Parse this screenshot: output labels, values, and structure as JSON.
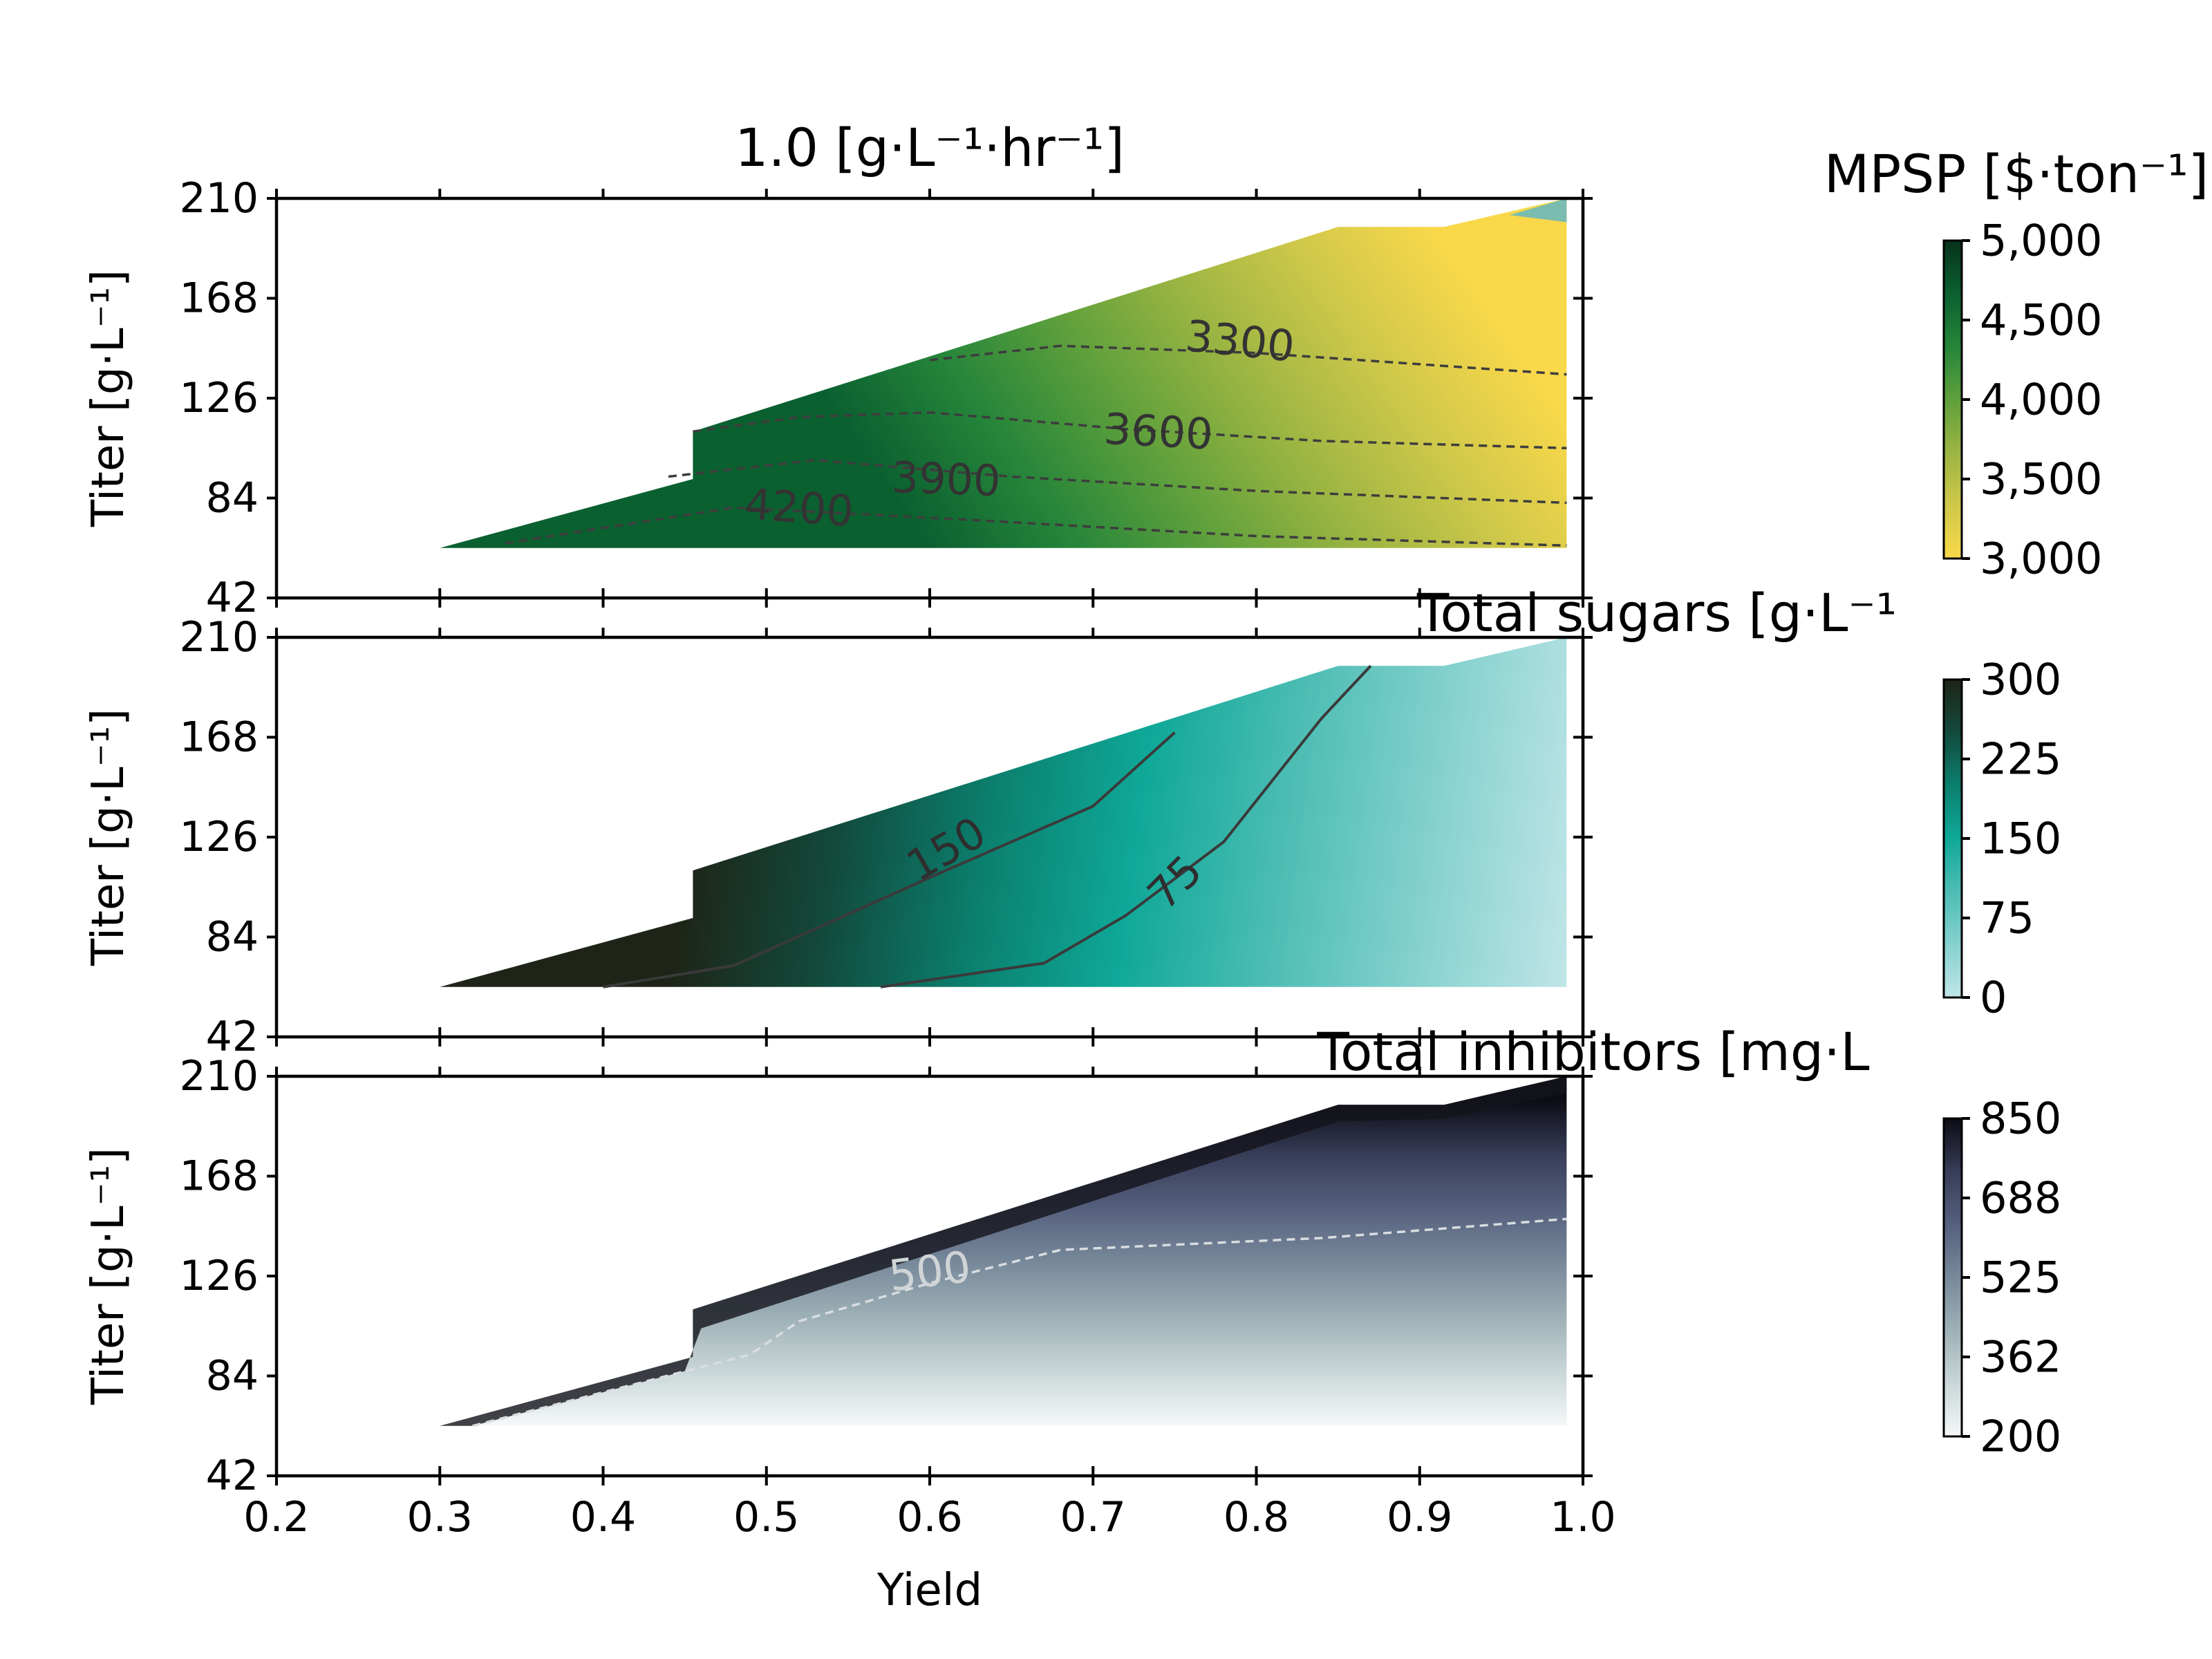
{
  "figure": {
    "title": "1.0 [g·L⁻¹·hr⁻¹]",
    "xlabel": "Yield",
    "ylabel": "Titer [g·L⁻¹]"
  },
  "chart_data": [
    {
      "type": "heatmap",
      "name": "MPSP",
      "colorbar_label": "MPSP [$·ton⁻¹]",
      "colorbar_ticks": [
        "5,000",
        "4,500",
        "4,000",
        "3,500",
        "3,000"
      ],
      "colorbar_range": [
        3000,
        5000
      ],
      "colors": [
        "#f9d84a",
        "#cfc84a",
        "#9cb542",
        "#5fa03c",
        "#25853a",
        "#0b6030",
        "#07321c"
      ],
      "xlim": [
        0.2,
        1.0
      ],
      "ylim": [
        42,
        210
      ],
      "xticks": [
        "0.2",
        "0.3",
        "0.4",
        "0.5",
        "0.6",
        "0.7",
        "0.8",
        "0.9",
        "1.0"
      ],
      "yticks": [
        "210",
        "168",
        "126",
        "84",
        "42"
      ],
      "contour_labels": [
        {
          "text": "3300",
          "x": 0.79,
          "y": 150
        },
        {
          "text": "3600",
          "x": 0.74,
          "y": 112
        },
        {
          "text": "3900",
          "x": 0.61,
          "y": 92
        },
        {
          "text": "4200",
          "x": 0.52,
          "y": 80
        }
      ]
    },
    {
      "type": "heatmap",
      "name": "Total sugars",
      "colorbar_label": "Total sugars [g·L⁻¹",
      "colorbar_ticks": [
        "300",
        "225",
        "150",
        "75",
        "0"
      ],
      "colorbar_range": [
        0,
        300
      ],
      "colors": [
        "#bfe5e7",
        "#86d1cf",
        "#4dbdb4",
        "#0fa898",
        "#0b7f6e",
        "#124a3c",
        "#1e2417"
      ],
      "xlim": [
        0.2,
        1.0
      ],
      "ylim": [
        42,
        210
      ],
      "xticks": [
        "0.2",
        "0.3",
        "0.4",
        "0.5",
        "0.6",
        "0.7",
        "0.8",
        "0.9",
        "1.0"
      ],
      "yticks": [
        "210",
        "168",
        "126",
        "84",
        "42"
      ],
      "contour_labels": [
        {
          "text": "150",
          "x": 0.61,
          "y": 121
        },
        {
          "text": "75",
          "x": 0.75,
          "y": 107
        }
      ]
    },
    {
      "type": "heatmap",
      "name": "Total inhibitors",
      "colorbar_label": "Total inhibitors [mg·L",
      "colorbar_ticks": [
        "850",
        "688",
        "525",
        "362",
        "200"
      ],
      "colorbar_range": [
        200,
        850
      ],
      "colors": [
        "#f5f8f8",
        "#c9d6d8",
        "#9eb1b6",
        "#78899b",
        "#55607d",
        "#383d58",
        "#0c0c14"
      ],
      "xlim": [
        0.2,
        1.0
      ],
      "ylim": [
        42,
        210
      ],
      "xticks": [
        "0.2",
        "0.3",
        "0.4",
        "0.5",
        "0.6",
        "0.7",
        "0.8",
        "0.9",
        "1.0"
      ],
      "yticks": [
        "210",
        "168",
        "126",
        "84",
        "42"
      ],
      "contour_labels": [
        {
          "text": "500",
          "x": 0.6,
          "y": 128
        }
      ]
    }
  ]
}
